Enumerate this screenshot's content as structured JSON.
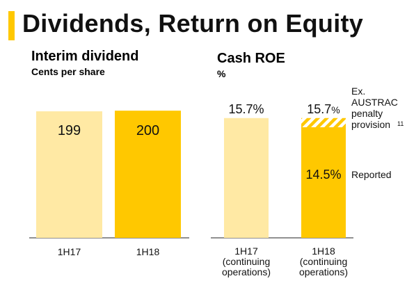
{
  "page": {
    "title": "Dividends, Return on Equity",
    "accent_color": "#FFC800",
    "light_color": "#FFE9A4",
    "dark_text_color": "#111111"
  },
  "chart_data": [
    {
      "type": "bar",
      "title": "Interim dividend",
      "subtitle": "Cents per share",
      "categories": [
        "1H17",
        "1H18"
      ],
      "values": [
        199,
        200
      ],
      "data_labels": [
        "199",
        "200"
      ],
      "bar_colors": [
        "#FFE9A4",
        "#FFC800"
      ],
      "ylim": [
        0,
        210
      ],
      "grid": false
    },
    {
      "type": "bar",
      "title": "Cash ROE",
      "subtitle": "%",
      "categories": [
        "1H17 (continuing operations)",
        "1H18 (continuing operations)"
      ],
      "category_lines": [
        [
          "1H17",
          "(continuing",
          "operations)"
        ],
        [
          "1H18",
          "(continuing",
          "operations)"
        ]
      ],
      "series": [
        {
          "name": "Reported",
          "values": [
            15.7,
            14.5
          ]
        },
        {
          "name": "AUSTRAC penalty provision",
          "values": [
            0,
            1.2
          ]
        }
      ],
      "totals": [
        15.7,
        15.7
      ],
      "data_labels": {
        "top": [
          "15.7%",
          "15.7%"
        ],
        "reported": [
          "",
          "14.5%"
        ]
      },
      "annotations": {
        "ex_lines": [
          "Ex.",
          "AUSTRAC",
          "penalty",
          "provision"
        ],
        "footnote": "11",
        "reported": "Reported"
      },
      "bar_colors": [
        "#FFE9A4",
        "#FFC800"
      ],
      "ylim": [
        0,
        17.5
      ],
      "grid": false
    }
  ]
}
